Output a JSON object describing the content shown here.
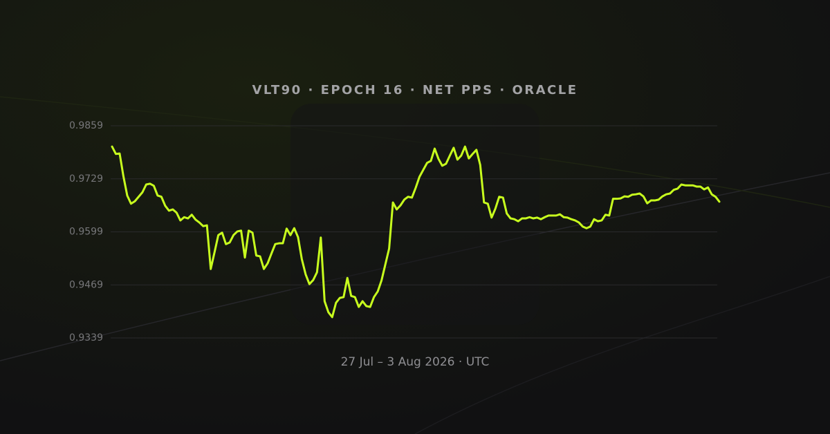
{
  "chart_data": {
    "type": "line",
    "title": "VLT90 · EPOCH 16 · NET PPS · ORACLE",
    "xlabel": "27 Jul – 3 Aug 2026 · UTC",
    "color": "#c8ff1e",
    "grid": true,
    "ylim": [
      0.9339,
      0.9859
    ],
    "yticks": [
      0.9339,
      0.9469,
      0.9599,
      0.9729,
      0.9859
    ],
    "values": [
      0.9808,
      0.979,
      0.9791,
      0.9735,
      0.9688,
      0.9668,
      0.9674,
      0.9685,
      0.9696,
      0.9715,
      0.9717,
      0.9712,
      0.9688,
      0.9685,
      0.9663,
      0.9651,
      0.9654,
      0.9646,
      0.9627,
      0.9635,
      0.9632,
      0.9641,
      0.9629,
      0.9622,
      0.9613,
      0.9615,
      0.9508,
      0.9549,
      0.9591,
      0.9597,
      0.9569,
      0.9573,
      0.9591,
      0.96,
      0.9602,
      0.9536,
      0.9602,
      0.9597,
      0.9541,
      0.9539,
      0.9508,
      0.9522,
      0.9546,
      0.9569,
      0.9571,
      0.9571,
      0.9607,
      0.9591,
      0.9608,
      0.9586,
      0.9532,
      0.9495,
      0.9471,
      0.9481,
      0.95,
      0.9585,
      0.9429,
      0.9402,
      0.939,
      0.9425,
      0.9437,
      0.9439,
      0.9486,
      0.9442,
      0.9439,
      0.9415,
      0.9429,
      0.9417,
      0.9415,
      0.9439,
      0.9453,
      0.948,
      0.9519,
      0.9558,
      0.9671,
      0.9654,
      0.9664,
      0.9678,
      0.9685,
      0.9683,
      0.9707,
      0.9734,
      0.9751,
      0.9768,
      0.9773,
      0.9803,
      0.9778,
      0.9761,
      0.9766,
      0.9786,
      0.9805,
      0.9776,
      0.9786,
      0.9808,
      0.9779,
      0.979,
      0.98,
      0.9763,
      0.9671,
      0.9668,
      0.9634,
      0.9656,
      0.9685,
      0.9683,
      0.9644,
      0.9632,
      0.963,
      0.9625,
      0.9632,
      0.9632,
      0.9635,
      0.9632,
      0.9634,
      0.963,
      0.9635,
      0.9639,
      0.9639,
      0.9639,
      0.9642,
      0.9635,
      0.9634,
      0.963,
      0.9627,
      0.9622,
      0.9612,
      0.9608,
      0.9612,
      0.963,
      0.9625,
      0.9627,
      0.9641,
      0.9639,
      0.968,
      0.968,
      0.9681,
      0.9686,
      0.9685,
      0.969,
      0.9691,
      0.9693,
      0.9686,
      0.9669,
      0.9676,
      0.9676,
      0.9678,
      0.9686,
      0.9691,
      0.9693,
      0.9702,
      0.9705,
      0.9715,
      0.9713,
      0.9713,
      0.9713,
      0.971,
      0.971,
      0.9703,
      0.9708,
      0.9691,
      0.9685,
      0.9673
    ]
  }
}
